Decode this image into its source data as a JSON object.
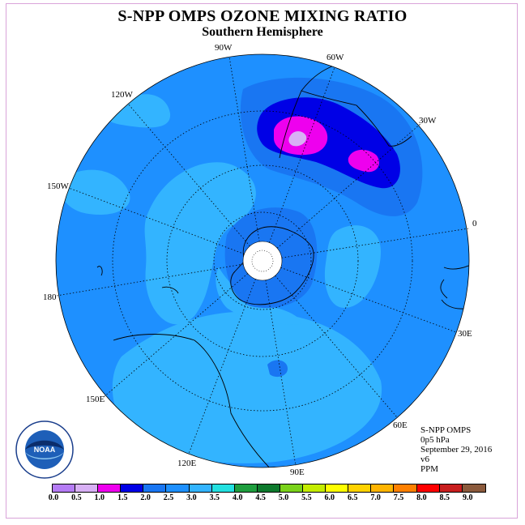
{
  "title": "S-NPP OMPS OZONE MIXING RATIO",
  "subtitle": "Southern Hemisphere",
  "longitude_labels": [
    "90W",
    "60W",
    "30W",
    "0",
    "30E",
    "60E",
    "90E",
    "120E",
    "150E",
    "180",
    "150W",
    "120W"
  ],
  "info": {
    "instrument": "S-NPP OMPS",
    "level": "0p5 hPa",
    "date": "September 29, 2016",
    "version": "v6",
    "units": "PPM"
  },
  "logo": {
    "text": "NOAA"
  },
  "colorbar": {
    "ticks": [
      "0.0",
      "0.5",
      "1.0",
      "1.5",
      "2.0",
      "2.5",
      "3.0",
      "3.5",
      "4.0",
      "4.5",
      "5.0",
      "5.5",
      "6.0",
      "6.5",
      "7.0",
      "7.5",
      "8.0",
      "8.5",
      "9.0"
    ],
    "colors": [
      "#b57cf5",
      "#d8b0f5",
      "#ee00ee",
      "#0000e6",
      "#1976f2",
      "#1e90ff",
      "#33b4ff",
      "#23e0e0",
      "#1e9e3e",
      "#0d7a2d",
      "#7ad21a",
      "#c4ec00",
      "#ffff00",
      "#ffd200",
      "#ffb400",
      "#ff8000",
      "#ff0000",
      "#c81e1e",
      "#8b5a3c"
    ]
  },
  "colors": {
    "level_2_0": "#1976f2",
    "level_2_5": "#1e90ff",
    "level_3_0": "#33b4ff",
    "level_1_5": "#0000e6",
    "level_1_0": "#ee00ee",
    "level_0_5": "#d8b0f5"
  }
}
